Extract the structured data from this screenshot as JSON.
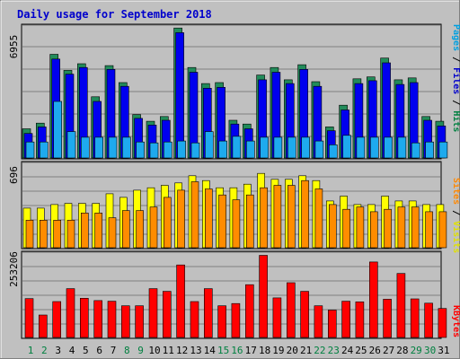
{
  "chart_data": [
    {
      "type": "bar",
      "title": "Daily usage for September 2018",
      "panel": "hits-files-pages",
      "ymax_label": "6955",
      "ymax": 6955,
      "categories": [
        "1",
        "2",
        "3",
        "4",
        "5",
        "6",
        "7",
        "8",
        "9",
        "10",
        "11",
        "12",
        "13",
        "14",
        "15",
        "16",
        "17",
        "18",
        "19",
        "20",
        "21",
        "22",
        "23",
        "24",
        "25",
        "26",
        "27",
        "28",
        "29",
        "30",
        "31"
      ],
      "weekend_days": [
        "1",
        "2",
        "8",
        "9",
        "15",
        "16",
        "22",
        "23",
        "29",
        "30"
      ],
      "right_label_parts": [
        {
          "text": "Pages",
          "color": "#00a0e0"
        },
        {
          "text": " / ",
          "color": "#000000"
        },
        {
          "text": "Files",
          "color": "#0000cc"
        },
        {
          "text": " / ",
          "color": "#000000"
        },
        {
          "text": "Hits",
          "color": "#008040"
        }
      ],
      "series": [
        {
          "name": "Hits",
          "color": "#228b5a",
          "values": [
            1550,
            1850,
            5500,
            4650,
            5000,
            3250,
            4900,
            4000,
            2300,
            1950,
            2200,
            6900,
            4800,
            3950,
            4000,
            2000,
            1800,
            4400,
            4800,
            4150,
            4950,
            4050,
            1650,
            2800,
            4200,
            4300,
            5300,
            4150,
            4250,
            2200,
            1950
          ]
        },
        {
          "name": "Files",
          "color": "#0000ee",
          "values": [
            1300,
            1650,
            5250,
            4450,
            4800,
            3000,
            4700,
            3800,
            2100,
            1750,
            2000,
            6650,
            4550,
            3700,
            3750,
            1800,
            1550,
            4150,
            4550,
            3950,
            4700,
            3800,
            1450,
            2550,
            3950,
            4100,
            5050,
            3900,
            4000,
            2000,
            1700
          ]
        },
        {
          "name": "Pages",
          "color": "#1eaaee",
          "values": [
            850,
            850,
            3000,
            1400,
            1100,
            1100,
            1100,
            1100,
            850,
            800,
            850,
            900,
            800,
            1400,
            900,
            1150,
            900,
            1100,
            1100,
            1100,
            1100,
            900,
            700,
            1200,
            1100,
            1100,
            1100,
            1100,
            800,
            850,
            850
          ]
        }
      ]
    },
    {
      "type": "bar",
      "panel": "visits-sites",
      "ymax_label": "696",
      "ymax": 696,
      "right_label_parts": [
        {
          "text": "Sites",
          "color": "#ff8800"
        },
        {
          "text": " / ",
          "color": "#000000"
        },
        {
          "text": "Visits",
          "color": "#e0e000"
        }
      ],
      "series": [
        {
          "name": "Visits",
          "color": "#ffff00",
          "values": [
            330,
            330,
            360,
            370,
            370,
            370,
            450,
            420,
            480,
            500,
            520,
            540,
            600,
            560,
            500,
            500,
            530,
            620,
            570,
            570,
            600,
            560,
            390,
            430,
            360,
            360,
            430,
            390,
            390,
            360,
            360
          ]
        },
        {
          "name": "Sites",
          "color": "#ff8c00",
          "values": [
            230,
            230,
            230,
            230,
            290,
            290,
            250,
            310,
            310,
            340,
            420,
            480,
            550,
            490,
            440,
            400,
            440,
            500,
            520,
            520,
            560,
            490,
            360,
            320,
            340,
            300,
            320,
            340,
            340,
            300,
            300
          ]
        }
      ]
    },
    {
      "type": "bar",
      "panel": "kbytes",
      "ymax_label": "253206",
      "ymax": 253206,
      "right_label_parts": [
        {
          "text": "KBytes",
          "color": "#ff0000"
        }
      ],
      "series": [
        {
          "name": "KBytes",
          "color": "#ff0000",
          "values": [
            118000,
            68000,
            109000,
            148000,
            119000,
            112000,
            110000,
            96000,
            96000,
            148000,
            140000,
            220000,
            109000,
            148000,
            96000,
            103000,
            160000,
            249000,
            120000,
            166000,
            140000,
            96000,
            83000,
            110000,
            108000,
            229000,
            116000,
            194000,
            117000,
            104000,
            88000
          ]
        }
      ]
    }
  ]
}
